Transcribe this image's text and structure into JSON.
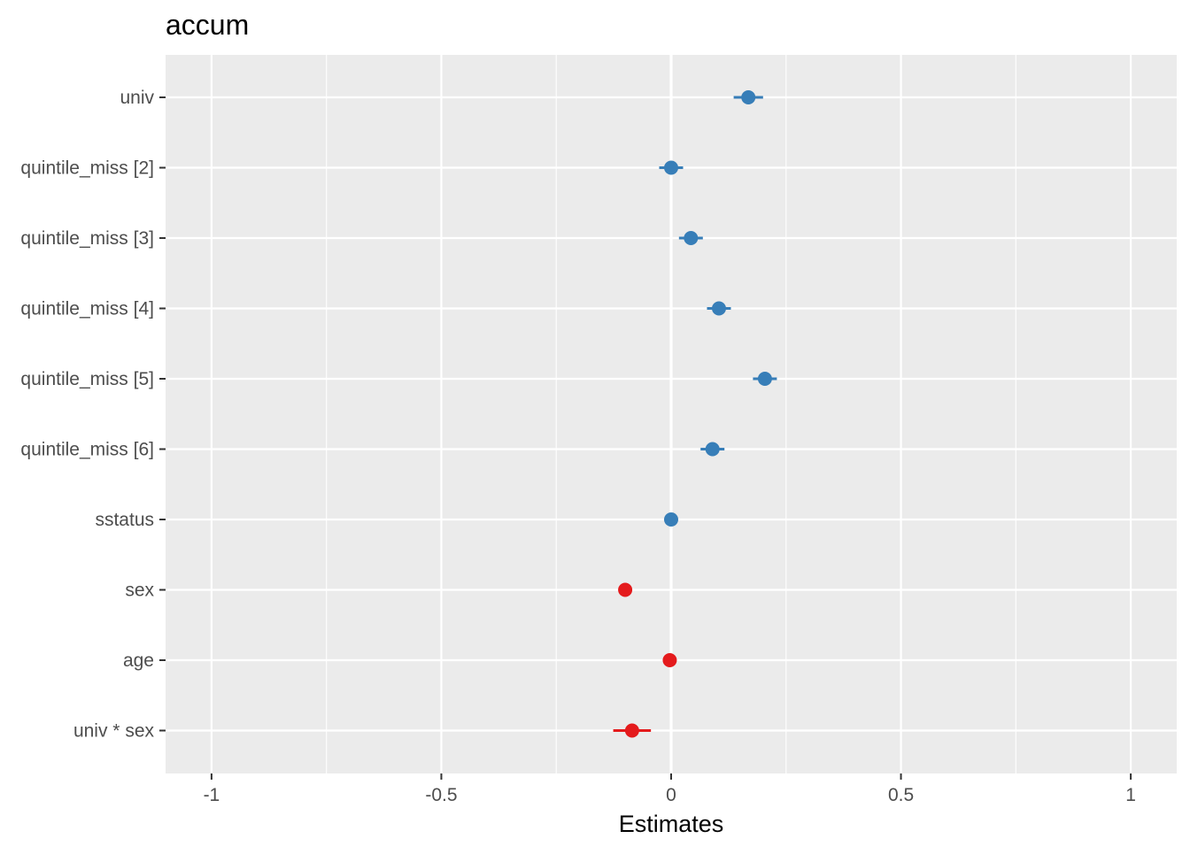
{
  "chart_data": {
    "type": "scatter",
    "title": "accum",
    "xlabel": "Estimates",
    "ylabel": "",
    "xlim": [
      -1.1,
      1.1
    ],
    "x_ticks": [
      -1,
      -0.5,
      0,
      0.5,
      1
    ],
    "x_tick_labels": [
      "-1",
      "-0.5",
      "0",
      "0.5",
      "1"
    ],
    "reference_line": 0,
    "grid": true,
    "legend": "none",
    "colors": {
      "positive": "#377EB8",
      "negative": "#E41A1C",
      "panel": "#EBEBEB",
      "grid": "#FFFFFF",
      "tick_text": "#4D4D4D"
    },
    "terms": [
      {
        "label": "univ",
        "estimate": 0.168,
        "ci": [
          0.136,
          0.2
        ]
      },
      {
        "label": "quintile_miss [2]",
        "estimate": 0.0,
        "ci": [
          -0.026,
          0.026
        ]
      },
      {
        "label": "quintile_miss [3]",
        "estimate": 0.043,
        "ci": [
          0.017,
          0.069
        ]
      },
      {
        "label": "quintile_miss [4]",
        "estimate": 0.104,
        "ci": [
          0.078,
          0.13
        ]
      },
      {
        "label": "quintile_miss [5]",
        "estimate": 0.204,
        "ci": [
          0.178,
          0.23
        ]
      },
      {
        "label": "quintile_miss [6]",
        "estimate": 0.09,
        "ci": [
          0.064,
          0.116
        ]
      },
      {
        "label": "sstatus",
        "estimate": 0.0,
        "ci": [
          -0.005,
          0.005
        ]
      },
      {
        "label": "sex",
        "estimate": -0.1,
        "ci": [
          -0.11,
          -0.09
        ]
      },
      {
        "label": "age",
        "estimate": -0.003,
        "ci": [
          -0.006,
          0.0
        ]
      },
      {
        "label": "univ * sex",
        "estimate": -0.085,
        "ci": [
          -0.126,
          -0.044
        ]
      }
    ]
  }
}
